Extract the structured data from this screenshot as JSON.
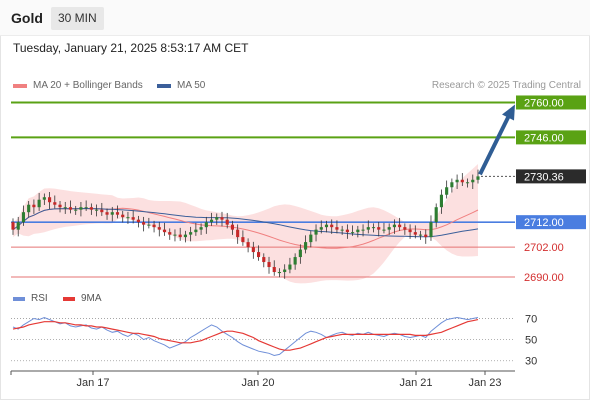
{
  "header": {
    "title": "Gold",
    "timeframe": "30 MIN"
  },
  "datetime": "Tuesday, January 21, 2025 8:53:17 AM CET",
  "legend": {
    "bollinger": "MA 20 + Bollinger Bands",
    "ma50": "MA 50",
    "copyright": "Research © 2025 Trading Central"
  },
  "rsi_legend": {
    "rsi": "RSI",
    "ma9": "9MA"
  },
  "colors": {
    "up_candle": "#2e7d32",
    "down_candle": "#c62828",
    "band_fill": "#fbd5d5",
    "ma20": "#f08080",
    "ma50": "#3b5f9a",
    "resistance": "#5aa214",
    "support": "#e57373",
    "pivot": "#4a7de0",
    "arrow": "#2f5d94",
    "rsi": "#6f8fd8",
    "rsi_ma": "#e53935"
  },
  "chart_data": {
    "type": "candlestick",
    "x_ticks": [
      "Jan 17",
      "Jan 20",
      "Jan 21",
      "Jan 23"
    ],
    "price_levels": [
      {
        "value": 2760.0,
        "label": "2760.00",
        "kind": "resistance"
      },
      {
        "value": 2746.0,
        "label": "2746.00",
        "kind": "resistance"
      },
      {
        "value": 2730.36,
        "label": "2730.36",
        "kind": "last"
      },
      {
        "value": 2712.0,
        "label": "2712.00",
        "kind": "pivot"
      },
      {
        "value": 2702.0,
        "label": "2702.00",
        "kind": "support"
      },
      {
        "value": 2690.0,
        "label": "2690.00",
        "kind": "support"
      }
    ],
    "close": [
      2709,
      2712,
      2716,
      2719,
      2718,
      2721,
      2722,
      2720,
      2719,
      2718,
      2718,
      2717,
      2717,
      2718,
      2718,
      2717,
      2717,
      2716,
      2715,
      2716,
      2715,
      2714,
      2714,
      2713,
      2712,
      2711,
      2711,
      2710,
      2709,
      2708,
      2707,
      2707,
      2706,
      2707,
      2708,
      2709,
      2710,
      2712,
      2713,
      2714,
      2713,
      2711,
      2709,
      2706,
      2704,
      2702,
      2700,
      2698,
      2696,
      2694,
      2692,
      2692,
      2693,
      2695,
      2698,
      2701,
      2704,
      2707,
      2709,
      2710,
      2711,
      2710,
      2709,
      2709,
      2708,
      2708,
      2709,
      2709,
      2710,
      2710,
      2709,
      2709,
      2710,
      2711,
      2710,
      2709,
      2708,
      2707,
      2707,
      2706,
      2712,
      2718,
      2723,
      2726,
      2728,
      2729,
      2728,
      2728,
      2729,
      2730.36
    ],
    "rsi": {
      "values": [
        62,
        60,
        64,
        67,
        70,
        69,
        71,
        69,
        67,
        65,
        66,
        63,
        62,
        63,
        64,
        61,
        60,
        62,
        59,
        57,
        58,
        55,
        53,
        56,
        54,
        50,
        52,
        49,
        47,
        45,
        42,
        44,
        46,
        48,
        52,
        55,
        58,
        61,
        64,
        62,
        58,
        55,
        52,
        48,
        45,
        43,
        41,
        39,
        38,
        37,
        35,
        36,
        40,
        44,
        48,
        52,
        56,
        58,
        57,
        55,
        52,
        54,
        56,
        57,
        55,
        54,
        56,
        55,
        57,
        55,
        54,
        53,
        55,
        56,
        55,
        53,
        52,
        53,
        54,
        52,
        58,
        62,
        66,
        69,
        70,
        71,
        70,
        69,
        70,
        71
      ],
      "ma9": [
        60,
        61,
        62,
        64,
        65,
        66,
        67,
        67,
        67,
        66,
        66,
        65,
        64,
        64,
        63,
        63,
        62,
        62,
        61,
        60,
        59,
        58,
        57,
        56,
        56,
        55,
        54,
        53,
        51,
        50,
        49,
        48,
        47,
        47,
        47,
        48,
        49,
        51,
        53,
        55,
        57,
        58,
        58,
        57,
        56,
        54,
        52,
        49,
        47,
        45,
        43,
        41,
        40,
        40,
        41,
        42,
        44,
        46,
        48,
        50,
        52,
        53,
        54,
        55,
        55,
        55,
        55,
        55,
        55,
        55,
        55,
        55,
        55,
        55,
        55,
        55,
        55,
        54,
        54,
        54,
        55,
        56,
        57,
        59,
        61,
        63,
        65,
        67,
        68,
        69
      ],
      "levels": [
        70,
        50,
        30
      ]
    }
  }
}
